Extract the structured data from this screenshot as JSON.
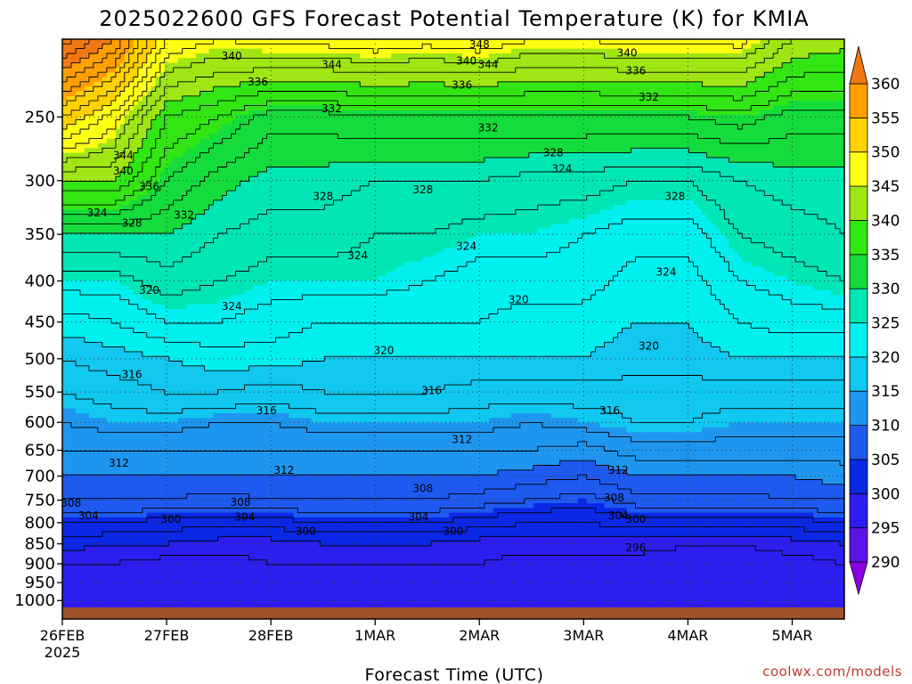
{
  "title": "2025022600 GFS Forecast Potential Temperature (K) for KMIA",
  "credit": "coolwx.com/models",
  "colorbar_labels": [
    "360",
    "355",
    "350",
    "345",
    "340",
    "335",
    "330",
    "325",
    "320",
    "315",
    "310",
    "305",
    "300",
    "295",
    "290"
  ],
  "colors": {
    "band_below_290": "#8a00e6",
    "band_290_295": "#5a14e6",
    "band_295_300": "#2d1ef0",
    "band_300_305": "#0a28e6",
    "band_305_310": "#1e5af0",
    "band_310_315": "#1e96f0",
    "band_315_320": "#10c8f0",
    "band_320_325": "#00f0f0",
    "band_325_330": "#00e6b4",
    "band_330_335": "#14dc3c",
    "band_335_340": "#32e614",
    "band_340_345": "#a0e614",
    "band_345_350": "#ffff14",
    "band_350_355": "#ffd200",
    "band_355_360": "#ffa000",
    "band_above_360": "#f07814",
    "ground": "#a0522d",
    "credit_text": "#c0392b"
  },
  "chart_data": {
    "type": "heatmap",
    "title": "2025022600 GFS Forecast Potential Temperature (K) for KMIA",
    "xlabel": "Forecast Time (UTC)",
    "ylabel": "",
    "x_ticks": [
      {
        "label": "26FEB",
        "sublabel": "2025",
        "hour": 0
      },
      {
        "label": "27FEB",
        "hour": 24
      },
      {
        "label": "28FEB",
        "hour": 48
      },
      {
        "label": "1MAR",
        "hour": 72
      },
      {
        "label": "2MAR",
        "hour": 96
      },
      {
        "label": "3MAR",
        "hour": 120
      },
      {
        "label": "4MAR",
        "hour": 144
      },
      {
        "label": "5MAR",
        "hour": 168
      }
    ],
    "x_range_hours": [
      0,
      180
    ],
    "y_ticks": [
      250,
      300,
      350,
      400,
      450,
      500,
      550,
      600,
      650,
      700,
      750,
      800,
      850,
      900,
      950,
      1000
    ],
    "y_axis": "pressure (log scale, inverted)",
    "y_range": [
      200,
      1020
    ],
    "color_levels": [
      290,
      295,
      300,
      305,
      310,
      315,
      320,
      325,
      330,
      335,
      340,
      345,
      350,
      355,
      360
    ],
    "contour_interval": 2,
    "grid": "dotted",
    "levels": [
      200,
      250,
      300,
      350,
      400,
      450,
      500,
      550,
      600,
      650,
      700,
      750,
      800,
      850,
      900,
      950,
      1000
    ],
    "times": [
      0,
      12,
      24,
      36,
      48,
      60,
      72,
      84,
      96,
      108,
      120,
      132,
      144,
      156,
      168,
      180
    ],
    "values": [
      [
        365,
        360,
        348,
        346,
        347,
        347,
        348,
        347,
        348,
        346,
        346,
        347,
        347,
        347,
        342,
        341
      ],
      [
        352,
        347,
        338,
        336,
        333,
        333,
        334,
        334,
        334,
        334,
        334,
        334,
        334,
        335,
        333,
        333
      ],
      [
        340,
        340,
        334,
        331,
        329,
        329,
        328,
        328,
        328,
        327,
        327,
        326,
        326,
        328,
        329,
        329
      ],
      [
        330,
        330,
        330,
        328,
        327,
        327,
        326,
        326,
        325,
        325,
        324,
        323,
        323,
        326,
        327,
        328
      ],
      [
        325,
        325,
        327,
        326,
        325,
        325,
        325,
        324,
        323,
        323,
        323,
        321,
        321,
        324,
        325,
        326
      ],
      [
        321,
        322,
        324,
        324,
        323,
        322,
        322,
        322,
        322,
        321,
        321,
        320,
        320,
        322,
        323,
        323
      ],
      [
        318,
        319,
        320,
        321,
        321,
        320,
        320,
        320,
        320,
        320,
        320,
        319,
        319,
        320,
        320,
        320
      ],
      [
        316,
        317,
        318,
        318,
        317,
        318,
        318,
        318,
        317,
        317,
        317,
        317,
        317,
        317,
        317,
        317
      ],
      [
        314,
        315,
        315,
        314,
        314,
        315,
        315,
        315,
        315,
        314,
        315,
        316,
        316,
        315,
        315,
        315
      ],
      [
        312,
        312,
        312,
        312,
        312,
        312,
        312,
        312,
        312,
        312,
        311,
        313,
        313,
        313,
        313,
        313
      ],
      [
        310,
        310,
        310,
        310,
        310,
        310,
        310,
        310,
        310,
        309,
        308,
        310,
        310,
        310,
        310,
        311
      ],
      [
        308,
        308,
        308,
        307,
        308,
        308,
        308,
        308,
        307,
        306,
        305,
        307,
        307,
        307,
        308,
        308
      ],
      [
        304,
        304,
        303,
        303,
        303,
        304,
        304,
        304,
        303,
        302,
        302,
        303,
        303,
        303,
        303,
        304
      ],
      [
        301,
        300,
        300,
        299,
        299,
        300,
        300,
        300,
        299,
        299,
        299,
        299,
        298,
        298,
        299,
        300
      ],
      [
        298,
        298,
        297,
        297,
        298,
        298,
        298,
        298,
        298,
        297,
        297,
        297,
        297,
        297,
        297,
        298
      ],
      [
        297,
        297,
        296,
        296,
        297,
        297,
        297,
        297,
        297,
        297,
        296,
        296,
        296,
        296,
        296,
        297
      ],
      [
        296,
        296,
        296,
        296,
        296,
        296,
        296,
        296,
        296,
        296,
        296,
        296,
        296,
        296,
        296,
        296
      ]
    ],
    "contour_labels": [
      {
        "text": "344",
        "hour": 14,
        "p": 279
      },
      {
        "text": "340",
        "hour": 14,
        "p": 292
      },
      {
        "text": "336",
        "hour": 20,
        "p": 305
      },
      {
        "text": "324",
        "hour": 8,
        "p": 329
      },
      {
        "text": "328",
        "hour": 16,
        "p": 339
      },
      {
        "text": "332",
        "hour": 28,
        "p": 331
      },
      {
        "text": "320",
        "hour": 20,
        "p": 411
      },
      {
        "text": "316",
        "hour": 16,
        "p": 523
      },
      {
        "text": "312",
        "hour": 13,
        "p": 674
      },
      {
        "text": "308",
        "hour": 2,
        "p": 757
      },
      {
        "text": "304",
        "hour": 6,
        "p": 784
      },
      {
        "text": "300",
        "hour": 25,
        "p": 792
      },
      {
        "text": "340",
        "hour": 39,
        "p": 210
      },
      {
        "text": "336",
        "hour": 45,
        "p": 226
      },
      {
        "text": "332",
        "hour": 62,
        "p": 244
      },
      {
        "text": "328",
        "hour": 60,
        "p": 314
      },
      {
        "text": "324",
        "hour": 39,
        "p": 430
      },
      {
        "text": "316",
        "hour": 47,
        "p": 580
      },
      {
        "text": "312",
        "hour": 51,
        "p": 688
      },
      {
        "text": "308",
        "hour": 41,
        "p": 755
      },
      {
        "text": "304",
        "hour": 42,
        "p": 787
      },
      {
        "text": "300",
        "hour": 56,
        "p": 820
      },
      {
        "text": "344",
        "hour": 62,
        "p": 215
      },
      {
        "text": "324",
        "hour": 68,
        "p": 372
      },
      {
        "text": "320",
        "hour": 74,
        "p": 488
      },
      {
        "text": "316",
        "hour": 85,
        "p": 548
      },
      {
        "text": "308",
        "hour": 83,
        "p": 725
      },
      {
        "text": "304",
        "hour": 82,
        "p": 787
      },
      {
        "text": "300",
        "hour": 90,
        "p": 820
      },
      {
        "text": "328",
        "hour": 83,
        "p": 308
      },
      {
        "text": "324",
        "hour": 93,
        "p": 362
      },
      {
        "text": "312",
        "hour": 92,
        "p": 630
      },
      {
        "text": "348",
        "hour": 96,
        "p": 203
      },
      {
        "text": "340",
        "hour": 93,
        "p": 213
      },
      {
        "text": "344",
        "hour": 98,
        "p": 215
      },
      {
        "text": "336",
        "hour": 92,
        "p": 228
      },
      {
        "text": "332",
        "hour": 98,
        "p": 258
      },
      {
        "text": "328",
        "hour": 113,
        "p": 277
      },
      {
        "text": "324",
        "hour": 115,
        "p": 290
      },
      {
        "text": "320",
        "hour": 105,
        "p": 422
      },
      {
        "text": "316",
        "hour": 126,
        "p": 580
      },
      {
        "text": "312",
        "hour": 128,
        "p": 688
      },
      {
        "text": "308",
        "hour": 127,
        "p": 745
      },
      {
        "text": "304",
        "hour": 128,
        "p": 784
      },
      {
        "text": "300",
        "hour": 132,
        "p": 792
      },
      {
        "text": "296",
        "hour": 132,
        "p": 860
      },
      {
        "text": "340",
        "hour": 130,
        "p": 208
      },
      {
        "text": "336",
        "hour": 132,
        "p": 219
      },
      {
        "text": "332",
        "hour": 135,
        "p": 236
      },
      {
        "text": "328",
        "hour": 141,
        "p": 314
      },
      {
        "text": "324",
        "hour": 139,
        "p": 390
      },
      {
        "text": "320",
        "hour": 135,
        "p": 482
      }
    ]
  }
}
